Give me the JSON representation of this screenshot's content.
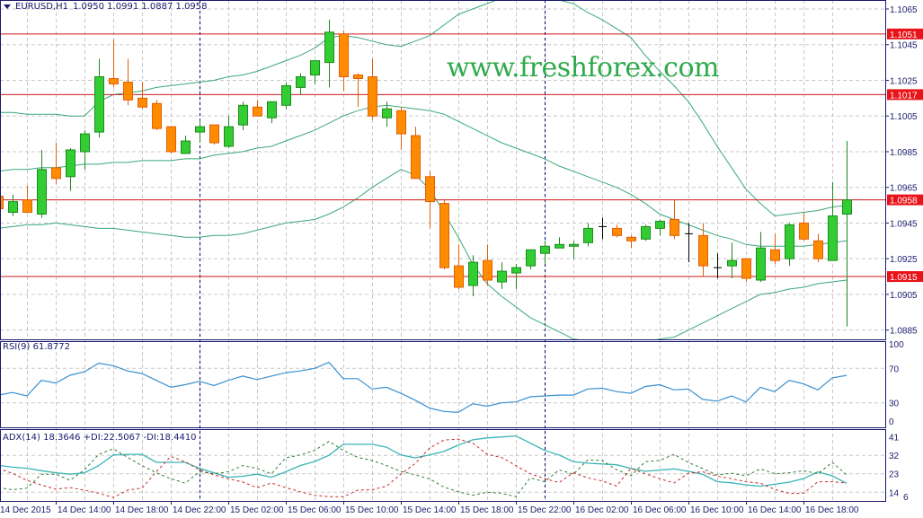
{
  "header": {
    "symbol": "EURUSD,H1",
    "ohlc": "1.0950 1.0991 1.0887 1.0958",
    "menu_icon": "triangle-down-icon"
  },
  "watermark": "www.freshforex.com",
  "colors": {
    "bull": "#32cd32",
    "bull_border": "#1f8a1f",
    "bear": "#ff8c00",
    "bear_border": "#e0600a",
    "doji": "#000000",
    "bands": "#3aa878",
    "level": "#cc1a1a",
    "rsi": "#3a8fd0",
    "adx": "#3ab4b4",
    "plus_di": "#2e7d32",
    "minus_di": "#c62828",
    "grid": "#c8c8c8",
    "axis": "#1a1a6e",
    "separator": "#000066"
  },
  "chart_data": {
    "type": "candlestick",
    "symbol": "EURUSD,H1",
    "price_ticks": [
      "1.1065",
      "1.1045",
      "1.1025",
      "1.1005",
      "1.0985",
      "1.0965",
      "1.0945",
      "1.0925",
      "1.0905",
      "1.0885"
    ],
    "ylim": [
      1.088,
      1.107
    ],
    "levels": [
      "1.1051",
      "1.1017",
      "1.0958",
      "1.0915"
    ],
    "time_labels": [
      "14 Dec 2015",
      "14 Dec 14:00",
      "14 Dec 18:00",
      "14 Dec 22:00",
      "15 Dec 02:00",
      "15 Dec 06:00",
      "15 Dec 10:00",
      "15 Dec 14:00",
      "15 Dec 18:00",
      "15 Dec 22:00",
      "16 Dec 02:00",
      "16 Dec 06:00",
      "16 Dec 10:00",
      "16 Dec 14:00",
      "16 Dec 18:00"
    ],
    "day_separators": [
      "15 Dec 00:00",
      "16 Dec 00:00"
    ],
    "times": [
      "14 Dec 10:00",
      "14 Dec 11:00",
      "14 Dec 12:00",
      "14 Dec 13:00",
      "14 Dec 14:00",
      "14 Dec 15:00",
      "14 Dec 16:00",
      "14 Dec 17:00",
      "14 Dec 18:00",
      "14 Dec 19:00",
      "14 Dec 20:00",
      "14 Dec 21:00",
      "14 Dec 22:00",
      "14 Dec 23:00",
      "15 Dec 00:00",
      "15 Dec 01:00",
      "15 Dec 02:00",
      "15 Dec 03:00",
      "15 Dec 04:00",
      "15 Dec 05:00",
      "15 Dec 06:00",
      "15 Dec 07:00",
      "15 Dec 08:00",
      "15 Dec 09:00",
      "15 Dec 10:00",
      "15 Dec 11:00",
      "15 Dec 12:00",
      "15 Dec 13:00",
      "15 Dec 14:00",
      "15 Dec 15:00",
      "15 Dec 16:00",
      "15 Dec 17:00",
      "15 Dec 18:00",
      "15 Dec 19:00",
      "15 Dec 20:00",
      "15 Dec 21:00",
      "15 Dec 22:00",
      "15 Dec 23:00",
      "16 Dec 00:00",
      "16 Dec 01:00",
      "16 Dec 02:00",
      "16 Dec 03:00",
      "16 Dec 04:00",
      "16 Dec 05:00",
      "16 Dec 06:00",
      "16 Dec 07:00",
      "16 Dec 08:00",
      "16 Dec 09:00",
      "16 Dec 10:00",
      "16 Dec 11:00",
      "16 Dec 12:00",
      "16 Dec 13:00",
      "16 Dec 14:00",
      "16 Dec 15:00",
      "16 Dec 16:00",
      "16 Dec 17:00",
      "16 Dec 18:00",
      "16 Dec 19:00",
      "16 Dec 20:00",
      "16 Dec 21:00"
    ],
    "ohlc": [
      [
        1.096,
        1.0961,
        1.0952,
        1.0953
      ],
      [
        1.0951,
        1.0961,
        1.0949,
        1.0957
      ],
      [
        1.0958,
        1.0966,
        1.0951,
        1.0951
      ],
      [
        1.095,
        1.0986,
        1.0948,
        1.0975
      ],
      [
        1.0976,
        1.099,
        1.0967,
        1.097
      ],
      [
        1.0971,
        1.0987,
        1.0963,
        1.0986
      ],
      [
        1.0985,
        1.0997,
        1.0975,
        1.0995
      ],
      [
        1.0996,
        1.1037,
        1.0993,
        1.1027
      ],
      [
        1.1026,
        1.1048,
        1.1021,
        1.1023
      ],
      [
        1.1024,
        1.1037,
        1.1011,
        1.1014
      ],
      [
        1.1015,
        1.1024,
        1.1009,
        1.101
      ],
      [
        1.1012,
        1.1014,
        1.0997,
        1.0998
      ],
      [
        1.0999,
        1.0999,
        1.0984,
        1.0985
      ],
      [
        1.0984,
        1.0994,
        1.0984,
        1.0991
      ],
      [
        1.0996,
        1.1003,
        1.099,
        1.0999
      ],
      [
        1.1,
        1.1,
        1.0989,
        1.099
      ],
      [
        1.0988,
        1.1005,
        1.0987,
        1.0999
      ],
      [
        1.1,
        1.1013,
        1.0997,
        1.1011
      ],
      [
        1.101,
        1.1014,
        1.1005,
        1.1005
      ],
      [
        1.1004,
        1.1013,
        1.1001,
        1.1013
      ],
      [
        1.1011,
        1.1024,
        1.1009,
        1.1022
      ],
      [
        1.1021,
        1.1029,
        1.1017,
        1.1027
      ],
      [
        1.1028,
        1.1036,
        1.1023,
        1.1036
      ],
      [
        1.1035,
        1.1059,
        1.1021,
        1.1052
      ],
      [
        1.1051,
        1.1053,
        1.1019,
        1.1027
      ],
      [
        1.1028,
        1.1029,
        1.101,
        1.1026
      ],
      [
        1.1027,
        1.1037,
        1.1003,
        1.1005
      ],
      [
        1.1004,
        1.1013,
        1.0999,
        1.1009
      ],
      [
        1.1008,
        1.101,
        1.0986,
        1.0995
      ],
      [
        1.0994,
        1.0999,
        1.097,
        1.097
      ],
      [
        1.0971,
        1.0974,
        1.0942,
        1.0957
      ],
      [
        1.0956,
        1.0958,
        1.0919,
        1.092
      ],
      [
        1.0921,
        1.0933,
        1.0908,
        1.0909
      ],
      [
        1.091,
        1.0927,
        1.0904,
        1.0923
      ],
      [
        1.0924,
        1.0933,
        1.091,
        1.0913
      ],
      [
        1.0912,
        1.0923,
        1.0908,
        1.0918
      ],
      [
        1.0917,
        1.0922,
        1.0908,
        1.092
      ],
      [
        1.0921,
        1.093,
        1.0919,
        1.093
      ],
      [
        1.0928,
        1.0935,
        1.0922,
        1.0932
      ],
      [
        1.0931,
        1.0937,
        1.0931,
        1.0933
      ],
      [
        1.0932,
        1.0935,
        1.0925,
        1.0933
      ],
      [
        1.0934,
        1.0945,
        1.0932,
        1.0942
      ],
      [
        1.0943,
        1.0948,
        1.0936,
        1.0943
      ],
      [
        1.0942,
        1.0944,
        1.0937,
        1.0938
      ],
      [
        1.0937,
        1.0938,
        1.0931,
        1.0935
      ],
      [
        1.0936,
        1.0944,
        1.0935,
        1.0943
      ],
      [
        1.0942,
        1.0947,
        1.0938,
        1.0946
      ],
      [
        1.0947,
        1.0958,
        1.0936,
        1.0938
      ],
      [
        1.0939,
        1.0945,
        1.0923,
        1.0939
      ],
      [
        1.0938,
        1.0945,
        1.0915,
        1.0921
      ],
      [
        1.092,
        1.0928,
        1.0914,
        1.092
      ],
      [
        1.0921,
        1.0934,
        1.0914,
        1.0924
      ],
      [
        1.0925,
        1.0925,
        1.0912,
        1.0914
      ],
      [
        1.0913,
        1.094,
        1.0912,
        1.0931
      ],
      [
        1.093,
        1.0939,
        1.0922,
        1.0924
      ],
      [
        1.0925,
        1.0945,
        1.0921,
        1.0944
      ],
      [
        1.0945,
        1.0951,
        1.0935,
        1.0936
      ],
      [
        1.0935,
        1.0939,
        1.0923,
        1.0925
      ],
      [
        1.0924,
        1.0968,
        1.0924,
        1.0949
      ],
      [
        1.095,
        1.0991,
        1.0887,
        1.0958
      ]
    ],
    "bands": {
      "upper": [
        1.1007,
        1.1007,
        1.1006,
        1.1006,
        1.1006,
        1.1005,
        1.1005,
        1.1013,
        1.1017,
        1.1018,
        1.1019,
        1.1021,
        1.1022,
        1.1023,
        1.1024,
        1.1025,
        1.1027,
        1.1028,
        1.103,
        1.1033,
        1.1036,
        1.1039,
        1.1043,
        1.1049,
        1.105,
        1.1049,
        1.1047,
        1.1045,
        1.1044,
        1.1047,
        1.105,
        1.1056,
        1.1062,
        1.1065,
        1.1068,
        1.1071,
        1.1073,
        1.1072,
        1.1071,
        1.107,
        1.1068,
        1.1063,
        1.1059,
        1.1054,
        1.1049,
        1.1039,
        1.103,
        1.1022,
        1.1013,
        1.1001,
        1.0988,
        1.0976,
        1.0964,
        1.0956,
        1.0949,
        1.095,
        1.0951,
        1.0952,
        1.0954,
        1.0955
      ],
      "middle": [
        1.0974,
        1.0975,
        1.0975,
        1.0976,
        1.0976,
        1.0977,
        1.0978,
        1.0978,
        1.0979,
        1.0979,
        1.098,
        1.098,
        1.098,
        1.0981,
        1.0981,
        1.0983,
        1.0984,
        1.0985,
        1.0987,
        1.0988,
        1.0991,
        1.0994,
        1.0997,
        1.1001,
        1.1005,
        1.1008,
        1.101,
        1.1011,
        1.101,
        1.1009,
        1.1008,
        1.1006,
        1.1002,
        1.0998,
        1.0994,
        1.099,
        1.0987,
        1.0984,
        1.0981,
        1.0977,
        1.0974,
        1.0971,
        1.0968,
        1.0965,
        1.0961,
        1.0956,
        1.095,
        1.0947,
        1.0944,
        1.0941,
        1.0938,
        1.0936,
        1.0933,
        1.0932,
        1.0932,
        1.0932,
        1.0932,
        1.0933,
        1.0934,
        1.0935
      ],
      "lower": [
        1.0942,
        1.0943,
        1.0944,
        1.0944,
        1.0945,
        1.0944,
        1.0943,
        1.0942,
        1.0942,
        1.0941,
        1.094,
        1.0939,
        1.0938,
        1.0937,
        1.0937,
        1.0938,
        1.0938,
        1.0939,
        1.0941,
        1.0943,
        1.0945,
        1.0946,
        1.0947,
        1.095,
        1.0954,
        1.0959,
        1.0965,
        1.097,
        1.0975,
        1.0972,
        1.0964,
        1.0951,
        1.0937,
        1.0922,
        1.0911,
        1.0904,
        1.0898,
        1.0892,
        1.0888,
        1.0884,
        1.088,
        1.0879,
        1.0878,
        1.0877,
        1.0876,
        1.0878,
        1.088,
        1.0881,
        1.0885,
        1.0889,
        1.0893,
        1.0897,
        1.0901,
        1.0905,
        1.0906,
        1.0908,
        1.0909,
        1.0911,
        1.0912,
        1.0913
      ]
    },
    "rsi": {
      "label": "RSI(9) 61.8772",
      "ticks": [
        "100",
        "70",
        "30",
        "0"
      ],
      "levels": [
        70,
        30
      ],
      "ylim": [
        0,
        100
      ],
      "values": [
        39,
        42,
        38,
        56,
        53,
        62,
        66,
        76,
        73,
        67,
        64,
        56,
        48,
        51,
        55,
        50,
        56,
        61,
        57,
        61,
        65,
        67,
        70,
        77,
        58,
        58,
        46,
        48,
        41,
        33,
        24,
        20,
        19,
        29,
        26,
        30,
        31,
        37,
        38,
        39,
        39,
        46,
        47,
        43,
        41,
        49,
        51,
        45,
        46,
        34,
        32,
        38,
        31,
        48,
        43,
        56,
        52,
        45,
        59,
        61.8772
      ]
    },
    "adx": {
      "label": "ADX(14) 18.3646 +DI:22.5067 -DI:18.4410",
      "ticks": [
        "41",
        "32",
        "23",
        "14",
        "6"
      ],
      "adx": [
        27.1,
        26.2,
        25.7,
        24.5,
        23.5,
        22.8,
        23.5,
        27,
        32.2,
        32.5,
        32.5,
        28.6,
        28.6,
        28.6,
        25.6,
        23.5,
        21.3,
        21.8,
        22.8,
        21.3,
        24,
        27,
        29,
        32,
        37.4,
        37.4,
        37.4,
        36,
        32.2,
        30.8,
        32.2,
        34,
        37,
        39.6,
        40.5,
        41,
        41.5,
        38,
        34.4,
        32.2,
        28.9,
        28.2,
        27.8,
        27.4,
        25.6,
        24.2,
        24.8,
        25.4,
        24.2,
        22.7,
        19.1,
        18.6,
        17.6,
        16.9,
        17.9,
        18.9,
        20.6,
        23.9,
        22,
        18.3646
      ],
      "plus_di": [
        16.2,
        15.2,
        16,
        22.8,
        22.8,
        19.8,
        25,
        32.5,
        35.2,
        31,
        27,
        23.5,
        20.6,
        18.4,
        24,
        23,
        24,
        27,
        25.6,
        23,
        30.8,
        32.2,
        34.4,
        38.8,
        34.4,
        31,
        29.5,
        27,
        24.2,
        22.5,
        20.5,
        16.5,
        14.2,
        12.5,
        14,
        13.5,
        11.8,
        21,
        19.1,
        24.9,
        22.8,
        29.8,
        29.5,
        25,
        22,
        28.9,
        29.5,
        32.5,
        28.5,
        25.5,
        22.4,
        23.3,
        22,
        25.4,
        23,
        23.5,
        24.5,
        23,
        28.6,
        22.5067
      ],
      "minus_di": [
        25.6,
        23.2,
        19.8,
        17.5,
        15.5,
        16.2,
        15,
        13.5,
        11.4,
        15,
        16,
        24,
        31.5,
        28.8,
        25,
        22.5,
        20.6,
        19,
        16.2,
        18.5,
        16.2,
        14.2,
        12.5,
        11.8,
        11.8,
        15,
        15.2,
        16.9,
        22.8,
        28,
        35.5,
        39.5,
        39.9,
        38,
        32.5,
        31,
        27,
        23,
        20.6,
        18.7,
        23.5,
        21,
        19.5,
        17,
        25.6,
        23,
        20.6,
        18.5,
        23.3,
        24,
        21.8,
        20.6,
        19.1,
        18.4,
        15.4,
        13.4,
        13.5,
        19.1,
        19.1,
        18.441
      ]
    }
  }
}
